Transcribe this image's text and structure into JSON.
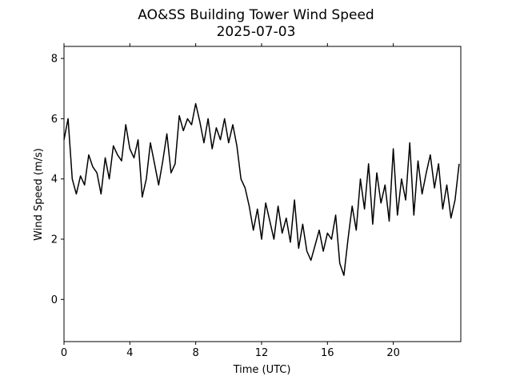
{
  "chart_data": {
    "type": "line",
    "title": "AO&SS Building Tower Wind Speed",
    "subtitle": "2025-07-03",
    "xlabel": "Time (UTC)",
    "ylabel": "Wind Speed (m/s)",
    "xlim": [
      0,
      24.1
    ],
    "ylim": [
      -1.4,
      8.4
    ],
    "xticks": [
      0,
      4,
      8,
      12,
      16,
      20
    ],
    "yticks": [
      0,
      2,
      4,
      6,
      8
    ],
    "grid": false,
    "series": [
      {
        "color": "#000000",
        "x": [
          0.0,
          0.25,
          0.5,
          0.75,
          1.0,
          1.25,
          1.5,
          1.75,
          2.0,
          2.25,
          2.5,
          2.75,
          3.0,
          3.25,
          3.5,
          3.75,
          4.0,
          4.25,
          4.5,
          4.75,
          5.0,
          5.25,
          5.5,
          5.75,
          6.0,
          6.25,
          6.5,
          6.75,
          7.0,
          7.25,
          7.5,
          7.75,
          8.0,
          8.25,
          8.5,
          8.75,
          9.0,
          9.25,
          9.5,
          9.75,
          10.0,
          10.25,
          10.5,
          10.75,
          11.0,
          11.25,
          11.5,
          11.75,
          12.0,
          12.25,
          12.5,
          12.75,
          13.0,
          13.25,
          13.5,
          13.75,
          14.0,
          14.25,
          14.5,
          14.75,
          15.0,
          15.25,
          15.5,
          15.75,
          16.0,
          16.25,
          16.5,
          16.75,
          17.0,
          17.25,
          17.5,
          17.75,
          18.0,
          18.25,
          18.5,
          18.75,
          19.0,
          19.25,
          19.5,
          19.75,
          20.0,
          20.25,
          20.5,
          20.75,
          21.0,
          21.25,
          21.5,
          21.75,
          22.0,
          22.25,
          22.5,
          22.75,
          23.0,
          23.25,
          23.5,
          23.75,
          24.0
        ],
        "y": [
          5.3,
          6.0,
          4.0,
          3.5,
          4.1,
          3.8,
          4.8,
          4.4,
          4.2,
          3.5,
          4.7,
          4.0,
          5.1,
          4.8,
          4.6,
          5.8,
          5.0,
          4.7,
          5.3,
          3.4,
          4.0,
          5.2,
          4.5,
          3.8,
          4.6,
          5.5,
          4.2,
          4.5,
          6.1,
          5.6,
          6.0,
          5.8,
          6.5,
          5.9,
          5.2,
          6.0,
          5.0,
          5.7,
          5.3,
          6.0,
          5.2,
          5.8,
          5.1,
          4.0,
          3.7,
          3.1,
          2.3,
          3.0,
          2.0,
          3.2,
          2.6,
          2.0,
          3.1,
          2.2,
          2.7,
          1.9,
          3.3,
          1.7,
          2.5,
          1.6,
          1.3,
          1.8,
          2.3,
          1.6,
          2.2,
          2.0,
          2.8,
          1.2,
          0.8,
          2.0,
          3.1,
          2.3,
          4.0,
          3.0,
          4.5,
          2.5,
          4.2,
          3.2,
          3.8,
          2.6,
          5.0,
          2.8,
          4.0,
          3.3,
          5.2,
          2.8,
          4.6,
          3.5,
          4.2,
          4.8,
          3.7,
          4.5,
          3.0,
          3.8,
          2.7,
          3.3,
          4.5
        ]
      }
    ]
  }
}
